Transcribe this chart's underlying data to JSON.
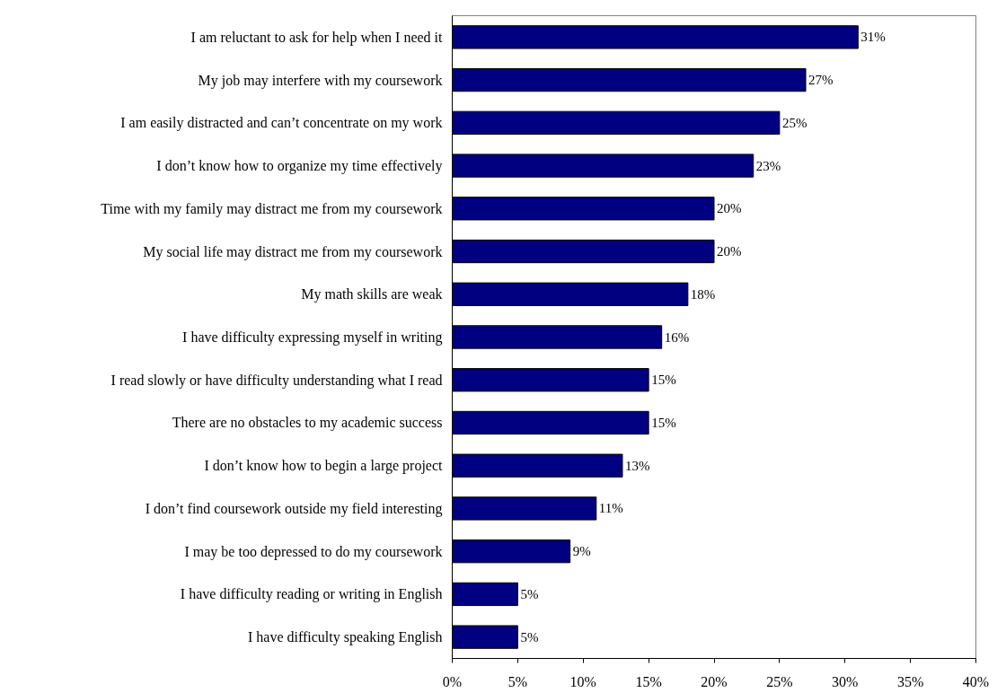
{
  "chart_data": {
    "type": "bar",
    "orientation": "horizontal",
    "categories": [
      "I am reluctant to ask for help when I need it",
      "My job may interfere with my coursework",
      "I am easily distracted and can’t concentrate on my work",
      "I don’t know how to organize my time effectively",
      "Time with my family may distract me from my coursework",
      "My social life may distract me from my coursework",
      "My math skills are weak",
      "I have difficulty expressing myself in writing",
      "I read slowly or have difficulty understanding what I read",
      "There are no obstacles to my academic success",
      "I don’t know how to begin a large project",
      "I don’t find coursework outside my field interesting",
      "I may be too depressed to do my coursework",
      "I have difficulty reading or writing in English",
      "I have difficulty speaking English"
    ],
    "values": [
      31,
      27,
      25,
      23,
      20,
      20,
      18,
      16,
      15,
      15,
      13,
      11,
      9,
      5,
      5
    ],
    "value_labels": [
      "31%",
      "27%",
      "25%",
      "23%",
      "20%",
      "20%",
      "18%",
      "16%",
      "15%",
      "15%",
      "13%",
      "11%",
      "9%",
      "5%",
      "5%"
    ],
    "color": "#000080",
    "xlim": [
      0,
      40
    ],
    "xticks": [
      {
        "value": 0,
        "label": "0%"
      },
      {
        "value": 5,
        "label": "5%"
      },
      {
        "value": 10,
        "label": "10%"
      },
      {
        "value": 15,
        "label": "15%"
      },
      {
        "value": 20,
        "label": "20%"
      },
      {
        "value": 25,
        "label": "25%"
      },
      {
        "value": 30,
        "label": "30%"
      },
      {
        "value": 35,
        "label": "35%"
      },
      {
        "value": 40,
        "label": "40%"
      }
    ],
    "grid": false
  }
}
